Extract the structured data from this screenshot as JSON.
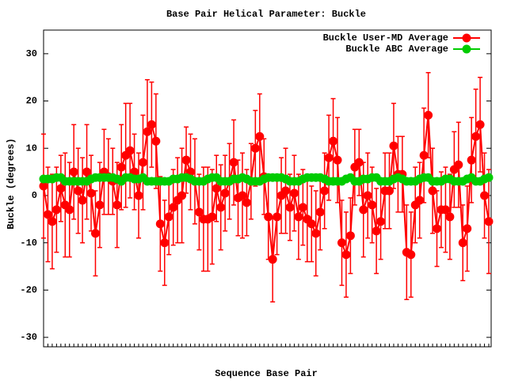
{
  "chart_data": {
    "type": "line",
    "title": "Base Pair Helical Parameter: Buckle",
    "x_label": "Sequence Base Pair",
    "y_label": "Buckle (degrees)",
    "ylim": [
      -32,
      35
    ],
    "yticks": [
      -30,
      -20,
      -10,
      0,
      10,
      20,
      30
    ],
    "legend": "top right",
    "categories": [
      null,
      null,
      null,
      null,
      null,
      null,
      null,
      null,
      null,
      null,
      null,
      null,
      null,
      null,
      null,
      null,
      null,
      null,
      null,
      null,
      null,
      null,
      null,
      null,
      null,
      null,
      null,
      null,
      null,
      null,
      null,
      null,
      null,
      null,
      null,
      null,
      null,
      null,
      null,
      null,
      null,
      null,
      null,
      null,
      null,
      null,
      null,
      null,
      null,
      null,
      null,
      null,
      null,
      null,
      null,
      null,
      null,
      null,
      null,
      null,
      null,
      null,
      null,
      null,
      null,
      null,
      null,
      null,
      null,
      null,
      null,
      null,
      null,
      null,
      null,
      null,
      null,
      null,
      null,
      null,
      null,
      null,
      null,
      null,
      null,
      null,
      null,
      null,
      null,
      null,
      null,
      null,
      null,
      null,
      null,
      null,
      null,
      null,
      null,
      null,
      null,
      null,
      null,
      null
    ],
    "series": [
      {
        "name": "Buckle User-MD Average",
        "color": "#ff0000",
        "values": [
          2,
          -4,
          -5.5,
          -3,
          1.5,
          -2,
          -3,
          5,
          1,
          -1,
          5,
          0.5,
          -8,
          -2,
          5,
          4,
          3,
          -2,
          6,
          8.5,
          9.5,
          5,
          0,
          7,
          13.5,
          15,
          11.5,
          -6,
          -10,
          -4.5,
          -2.5,
          -1,
          0,
          7.5,
          5,
          3,
          -3.5,
          -5,
          -5,
          -4.5,
          1.5,
          -2.5,
          0.5,
          3,
          7,
          -0.5,
          0,
          -1.5,
          3,
          10,
          12.5,
          4,
          -4.5,
          -13.5,
          -4.5,
          0,
          1,
          -2.5,
          0.5,
          -4.5,
          -2.5,
          -5,
          -6,
          -8,
          -3.5,
          1,
          8,
          11.5,
          7.5,
          -10,
          -12.5,
          -8.5,
          6,
          7,
          -3,
          0,
          -2,
          -7.5,
          -5.5,
          1,
          1,
          10.5,
          4.5,
          4.5,
          -12,
          -12.5,
          -2,
          -1,
          8.5,
          17,
          1,
          -7,
          -3,
          -3,
          -4.5,
          5.5,
          6.5,
          -10,
          -7,
          7.5,
          12.5,
          15,
          0,
          -5.5
        ],
        "errors": [
          11,
          10,
          10,
          9,
          7,
          11,
          10,
          10,
          9,
          9,
          10,
          8,
          9,
          9,
          9,
          8,
          7,
          9,
          9,
          11,
          10,
          8,
          9,
          10,
          11,
          9,
          10,
          10,
          9,
          8,
          8,
          9,
          10,
          7,
          8,
          9,
          8,
          11,
          11,
          10,
          7,
          9,
          8,
          8,
          9,
          8,
          9,
          7,
          8,
          8,
          9,
          8,
          9,
          9,
          8,
          8,
          9,
          7,
          8,
          9,
          8,
          9,
          8,
          9,
          8,
          8,
          9,
          9,
          9,
          9,
          9,
          8,
          8,
          7,
          10,
          9,
          8,
          9,
          8,
          8,
          8,
          9,
          8,
          8,
          10,
          9,
          8,
          8,
          10,
          9,
          9,
          8,
          8,
          9,
          9,
          8,
          9,
          8,
          9,
          9,
          10,
          10,
          9,
          11
        ]
      },
      {
        "name": "Buckle ABC Average",
        "color": "#00cc00",
        "values": [
          3.5,
          3.5,
          3.5,
          3.8,
          3.8,
          3.0,
          3.0,
          3.0,
          3.0,
          3.0,
          3.0,
          3.5,
          3.8,
          3.8,
          3.8,
          3.8,
          3.8,
          3.5,
          3.0,
          3.8,
          3.8,
          3.5,
          3.5,
          3.8,
          3.0,
          3.0,
          3.0,
          3.0,
          3.0,
          3.0,
          3.5,
          3.5,
          3.8,
          3.8,
          3.5,
          3.0,
          3.0,
          3.0,
          3.5,
          3.8,
          3.8,
          3.0,
          3.0,
          3.0,
          3.5,
          3.5,
          3.8,
          3.5,
          3.0,
          3.0,
          3.0,
          3.5,
          3.8,
          3.8,
          3.8,
          3.8,
          3.5,
          3.0,
          3.0,
          3.0,
          3.5,
          3.8,
          3.8,
          3.8,
          3.8,
          3.5,
          3.0,
          3.0,
          3.0,
          3.0,
          3.5,
          3.8,
          3.0,
          3.0,
          3.5,
          3.5,
          3.8,
          3.8,
          3.0,
          3.0,
          3.0,
          3.5,
          3.8,
          3.5,
          3.0,
          3.0,
          3.0,
          3.5,
          3.8,
          3.8,
          3.0,
          3.0,
          3.0,
          3.5,
          3.5,
          3.0,
          3.0,
          3.0,
          3.5,
          3.8,
          3.0,
          3.0,
          3.5,
          3.8
        ]
      }
    ]
  }
}
